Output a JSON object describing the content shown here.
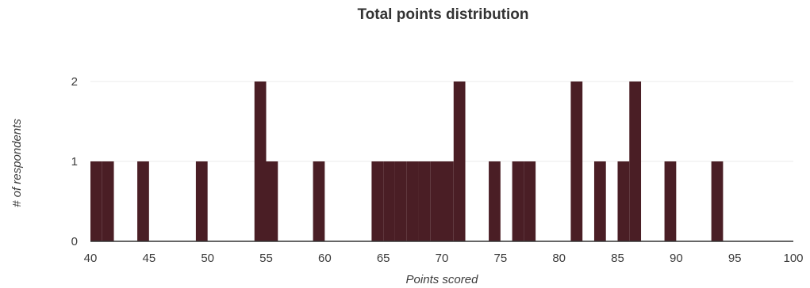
{
  "chart_data": {
    "type": "bar",
    "title": "Total points distribution",
    "xlabel": "Points scored",
    "ylabel": "# of respondents",
    "xlim": [
      40,
      100
    ],
    "ylim": [
      0,
      2
    ],
    "x_ticks": [
      "40",
      "45",
      "50",
      "55",
      "60",
      "65",
      "70",
      "75",
      "80",
      "85",
      "90",
      "95",
      "100"
    ],
    "y_ticks": [
      "0",
      "1",
      "2"
    ],
    "grid": true,
    "legend": "none",
    "bar_color": "#4a1e25",
    "gridline_color": "#ebebeb",
    "baseline_color": "#333333",
    "x": [
      40,
      41,
      42,
      44,
      45,
      49,
      50,
      54,
      55,
      56,
      59,
      60,
      64,
      65,
      66,
      67,
      68,
      69,
      70,
      71,
      72,
      74,
      75,
      76,
      77,
      78,
      81,
      82,
      83,
      84,
      85,
      86,
      87,
      89,
      90,
      93,
      94
    ],
    "values": [
      1,
      1,
      0,
      1,
      0,
      1,
      0,
      2,
      1,
      0,
      1,
      0,
      1,
      1,
      1,
      1,
      1,
      1,
      1,
      2,
      0,
      1,
      0,
      1,
      1,
      0,
      2,
      0,
      1,
      0,
      1,
      2,
      0,
      1,
      0,
      1,
      0
    ]
  }
}
